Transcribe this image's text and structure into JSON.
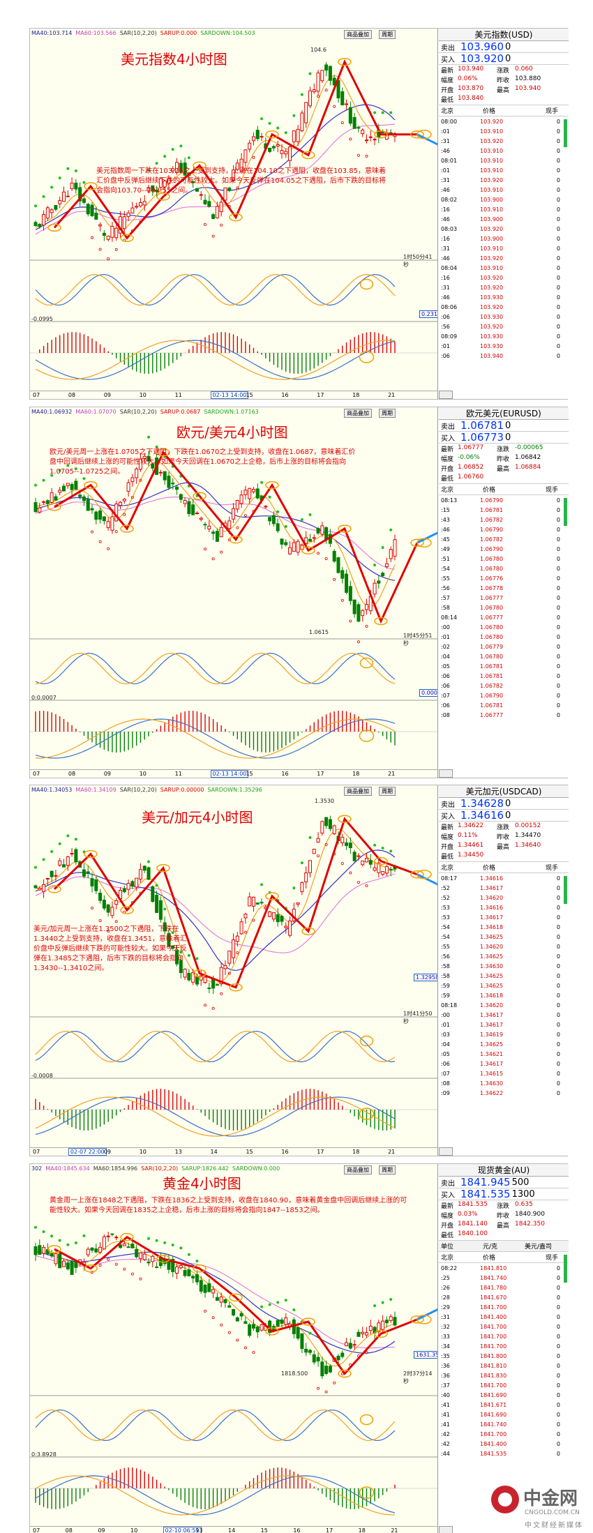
{
  "panels": [
    {
      "id": "usd",
      "indicators": [
        "MA40:103.714",
        "MA60:103.566",
        "SAR(10,2,20)",
        "SARUP:0.000",
        "SARDOWN:104.503"
      ],
      "toolbar": [
        "商品叠加",
        "周期"
      ],
      "title": "美元指数4小时图",
      "comment": "美元指数周一下跌在103.75之上受到支持，上涨在104.10之下遇阻，收盘在103.85，意味着汇价盘中反弹后继续下跌的可能性较大。如果今天反弹在104.05之下遇阻，后市下跌的目标将会指向103.70--103.55之间。",
      "countdown": "1时50分41秒",
      "peak_label": "104.6",
      "trough_label": "",
      "macd_label": "-0.0995",
      "macd_value": "0.231",
      "value_box": "",
      "xaxis": [
        "07",
        "08",
        "09",
        "10",
        "11",
        "02-13 14:00",
        "15",
        "16",
        "17",
        "18",
        "21"
      ],
      "quote": {
        "name": "美元指数(USD)",
        "sell_label": "卖出",
        "sell": "103.960",
        "sell_vol": "0",
        "buy_label": "买入",
        "buy": "103.920",
        "buy_vol": "0",
        "stats": [
          [
            "最新",
            "103.940",
            "涨跌",
            "0.060"
          ],
          [
            "幅度",
            "0.06%",
            "昨收",
            "103.880"
          ],
          [
            "开盘",
            "103.870",
            "最高",
            "103.940"
          ],
          [
            "最低",
            "103.840",
            "",
            ""
          ]
        ],
        "header": [
          "北京",
          "价格",
          "现手"
        ],
        "unit_row": [],
        "ticks": [
          [
            "08:00",
            "103.920",
            "0"
          ],
          [
            ":01",
            "103.910",
            "0"
          ],
          [
            ":31",
            "103.920",
            "0"
          ],
          [
            ":46",
            "103.910",
            "0"
          ],
          [
            "08:01",
            "103.910",
            "0"
          ],
          [
            ":01",
            "103.910",
            "0"
          ],
          [
            ":31",
            "103.920",
            "0"
          ],
          [
            ":46",
            "103.910",
            "0"
          ],
          [
            "08:02",
            "103.900",
            "0"
          ],
          [
            ":16",
            "103.910",
            "0"
          ],
          [
            ":46",
            "103.900",
            "0"
          ],
          [
            "08:03",
            "103.920",
            "0"
          ],
          [
            ":16",
            "103.900",
            "0"
          ],
          [
            ":31",
            "103.910",
            "0"
          ],
          [
            ":46",
            "103.920",
            "0"
          ],
          [
            "08:04",
            "103.910",
            "0"
          ],
          [
            ":16",
            "103.920",
            "0"
          ],
          [
            ":31",
            "103.920",
            "0"
          ],
          [
            ":46",
            "103.930",
            "0"
          ],
          [
            "08:06",
            "103.920",
            "0"
          ],
          [
            ":06",
            "103.930",
            "0"
          ],
          [
            ":56",
            "103.920",
            "0"
          ],
          [
            "08:09",
            "103.930",
            "0"
          ],
          [
            ":01",
            "103.930",
            "0"
          ],
          [
            ":06",
            "103.940",
            "0"
          ]
        ]
      }
    },
    {
      "id": "eur",
      "indicators": [
        "MA40:1.06932",
        "MA60:1.07070",
        "SAR(10,2,20)",
        "SARUP:0.0687",
        "SARDOWN:1.07163"
      ],
      "toolbar": [
        "商品叠加",
        "周期"
      ],
      "title": "欧元/美元4小时图",
      "comment": "欧元/美元周一上涨在1.0705之下遇阻，下跌在1.0670之上受到支持，收盘在1.0687，意味着汇价盘中回调后继续上涨的可能性较大。如果今天回调在1.0670之上企稳，后市上涨的目标将会指向1.0705--1.0725之间。",
      "countdown": "1时45分51秒",
      "peak_label": "",
      "trough_label": "1.0615",
      "macd_label": "0:0.0007",
      "macd_value": "0.00041",
      "value_box": "",
      "xaxis": [
        "07",
        "08",
        "09",
        "10",
        "11",
        "02-13 14:00",
        "15",
        "16",
        "17",
        "18",
        "21"
      ],
      "quote": {
        "name": "欧元美元(EURUSD)",
        "sell_label": "卖出",
        "sell": "1.06781",
        "sell_vol": "0",
        "buy_label": "买入",
        "buy": "1.06773",
        "buy_vol": "0",
        "stats": [
          [
            "最新",
            "1.06777",
            "涨跌",
            "-0.00065"
          ],
          [
            "幅度",
            "-0.06%",
            "昨收",
            "1.06842"
          ],
          [
            "开盘",
            "1.06852",
            "最高",
            "1.06884"
          ],
          [
            "最低",
            "1.06760",
            "",
            ""
          ]
        ],
        "header": [
          "北京",
          "价格",
          "现手"
        ],
        "unit_row": [],
        "ticks": [
          [
            "08:13",
            "1.06790",
            "0"
          ],
          [
            ":15",
            "1.06781",
            "0"
          ],
          [
            ":43",
            "1.06782",
            "0"
          ],
          [
            ":46",
            "1.06790",
            "0"
          ],
          [
            ":45",
            "1.06782",
            "0"
          ],
          [
            ":49",
            "1.06790",
            "0"
          ],
          [
            ":51",
            "1.06780",
            "0"
          ],
          [
            ":54",
            "1.06780",
            "0"
          ],
          [
            ":55",
            "1.06776",
            "0"
          ],
          [
            ":56",
            "1.06778",
            "0"
          ],
          [
            ":57",
            "1.06777",
            "0"
          ],
          [
            ":58",
            "1.06780",
            "0"
          ],
          [
            "08:14",
            "1.06777",
            "0"
          ],
          [
            ":00",
            "1.06780",
            "0"
          ],
          [
            ":01",
            "1.06780",
            "0"
          ],
          [
            ":02",
            "1.06779",
            "0"
          ],
          [
            ":04",
            "1.06780",
            "0"
          ],
          [
            ":05",
            "1.06781",
            "0"
          ],
          [
            ":06",
            "1.06781",
            "0"
          ],
          [
            ":06",
            "1.06782",
            "0"
          ],
          [
            ":07",
            "1.06790",
            "0"
          ],
          [
            ":06",
            "1.06781",
            "0"
          ],
          [
            ":08",
            "1.06777",
            "0"
          ]
        ]
      }
    },
    {
      "id": "cad",
      "indicators": [
        "MA40:1.34053",
        "MA60:1.34109",
        "SAR(10,2,20)",
        "SARUP:0.00000",
        "SARDOWN:1.35296"
      ],
      "toolbar": [
        "商品叠加",
        "周期"
      ],
      "title": "美元/加元4小时图",
      "comment": "美元/加元周一上涨在1.3500之下遇阻，下跌在1.3440之上受到支持，收盘在1.3451，意味着汇价盘中反弹后继续下跌的可能性较大。如果今天反弹在1.3485之下遇阻，后市下跌的目标将会指向1.3430--1.3410之间。",
      "countdown": "1时41分50秒",
      "peak_label": "1.3530",
      "trough_label": "",
      "macd_label": "-0.0008",
      "macd_value": "",
      "value_box": "1.32958",
      "xaxis": [
        "07",
        "02-07 22:00",
        "09",
        "10",
        "13",
        "14",
        "15",
        "16",
        "17",
        "18",
        "21"
      ],
      "quote": {
        "name": "美元加元(USDCAD)",
        "sell_label": "卖出",
        "sell": "1.34628",
        "sell_vol": "0",
        "buy_label": "买入",
        "buy": "1.34616",
        "buy_vol": "0",
        "stats": [
          [
            "最新",
            "1.34622",
            "涨跌",
            "0.00152"
          ],
          [
            "幅度",
            "0.11%",
            "昨收",
            "1.34470"
          ],
          [
            "开盘",
            "1.34461",
            "最高",
            "1.34640"
          ],
          [
            "最低",
            "1.34450",
            "",
            ""
          ]
        ],
        "header": [
          "北京",
          "价格",
          "现手"
        ],
        "unit_row": [],
        "ticks": [
          [
            "08:17",
            "1.34616",
            "0"
          ],
          [
            ":52",
            "1.34617",
            "0"
          ],
          [
            ":52",
            "1.34620",
            "0"
          ],
          [
            ":53",
            "1.34616",
            "0"
          ],
          [
            ":53",
            "1.34617",
            "0"
          ],
          [
            ":54",
            "1.34618",
            "0"
          ],
          [
            ":54",
            "1.34625",
            "0"
          ],
          [
            ":55",
            "1.34620",
            "0"
          ],
          [
            ":56",
            "1.34625",
            "0"
          ],
          [
            ":58",
            "1.34630",
            "0"
          ],
          [
            ":58",
            "1.34625",
            "0"
          ],
          [
            ":59",
            "1.34625",
            "0"
          ],
          [
            ":59",
            "1.34618",
            "0"
          ],
          [
            "08:18",
            "1.34620",
            "0"
          ],
          [
            ":00",
            "1.34617",
            "0"
          ],
          [
            ":01",
            "1.34617",
            "0"
          ],
          [
            ":03",
            "1.34619",
            "0"
          ],
          [
            ":04",
            "1.34625",
            "0"
          ],
          [
            ":05",
            "1.34621",
            "0"
          ],
          [
            ":06",
            "1.34617",
            "0"
          ],
          [
            ":07",
            "1.34615",
            "0"
          ],
          [
            ":08",
            "1.34630",
            "0"
          ],
          [
            ":09",
            "1.34622",
            "0"
          ]
        ]
      }
    },
    {
      "id": "gold",
      "indicators": [
        "302",
        "MA40:1845.634",
        "MA60:1854.996",
        "SAR(10,2,20)",
        "SARUP:1826.442",
        "SARDOWN:0.000"
      ],
      "toolbar": [
        "商品叠加",
        "周期"
      ],
      "title": "黄金4小时图",
      "comment": "黄金周一上涨在1848之下遇阻，下跌在1836之上受到支持，收盘在1840.90，意味着黄金盘中回调后继续上涨的可能性较大。如果今天回调在1835之上企稳，后市上涨的目标将会指向1847--1853之间。",
      "countdown": "2时37分14秒",
      "peak_label": "",
      "trough_label": "1818.500",
      "macd_label": "0:3.8928",
      "macd_value": "",
      "value_box": "1631.351",
      "xaxis": [
        "07",
        "08",
        "09",
        "10",
        "02-10 06:59",
        "13",
        "14",
        "15",
        "16",
        "17",
        "18",
        "21"
      ],
      "quote": {
        "name": "现货黄金(AU)",
        "sell_label": "卖出",
        "sell": "1841.945",
        "sell_vol": "500",
        "buy_label": "买入",
        "buy": "1841.535",
        "buy_vol": "1300",
        "stats": [
          [
            "最新",
            "1841.535",
            "涨跌",
            "0.635"
          ],
          [
            "幅度",
            "0.03%",
            "昨收",
            "1840.900"
          ],
          [
            "开盘",
            "1841.140",
            "最高",
            "1842.350"
          ],
          [
            "最低",
            "1840.100",
            "",
            ""
          ]
        ],
        "header": [
          "北京",
          "价格",
          "现手"
        ],
        "unit_row": [
          "单位",
          "元/克",
          "美元/盎司"
        ],
        "ticks": [
          [
            "08:22",
            "1841.810",
            "0"
          ],
          [
            ":25",
            "1841.740",
            "0"
          ],
          [
            ":26",
            "1841.780",
            "0"
          ],
          [
            ":28",
            "1841.670",
            "0"
          ],
          [
            ":29",
            "1841.700",
            "0"
          ],
          [
            ":31",
            "1841.400",
            "0"
          ],
          [
            ":32",
            "1841.700",
            "0"
          ],
          [
            ":33",
            "1841.700",
            "0"
          ],
          [
            ":34",
            "1841.700",
            "0"
          ],
          [
            ":35",
            "1841.800",
            "0"
          ],
          [
            ":36",
            "1841.810",
            "0"
          ],
          [
            ":36",
            "1841.830",
            "0"
          ],
          [
            ":37",
            "1841.700",
            "0"
          ],
          [
            ":40",
            "1841.690",
            "0"
          ],
          [
            ":41",
            "1841.671",
            "0"
          ],
          [
            ":41",
            "1841.690",
            "0"
          ],
          [
            ":41",
            "1841.740",
            "0"
          ],
          [
            ":42",
            "1841.700",
            "0"
          ],
          [
            ":42",
            "1841.400",
            "0"
          ],
          [
            ":44",
            "1841.535",
            "0"
          ]
        ]
      }
    }
  ],
  "logo": {
    "cn": "中金网",
    "en": "CNGOLD.COM.CN",
    "tag": "中文财经新媒体"
  },
  "colors": {
    "title_red": "#e00000",
    "candle_up": "#e00000",
    "candle_down": "#008000",
    "ma_blue": "#3030d0",
    "ma_pink": "#e080e0",
    "ma_orange": "#f0a020",
    "sar_red": "#e00000",
    "sar_green": "#20c020",
    "arrow_blue": "#1e90ff",
    "circle_orange": "#f0a000"
  },
  "chart_data": [
    {
      "type": "candlestick",
      "title": "美元指数4小时图",
      "x": [
        "07",
        "08",
        "09",
        "10",
        "11",
        "13",
        "15",
        "16",
        "17",
        "18",
        "21"
      ],
      "series": [
        {
          "values": [
            103.0,
            103.4,
            102.9,
            103.3,
            103.6,
            103.1,
            103.9,
            103.7,
            104.6,
            103.9,
            103.9
          ]
        }
      ],
      "ylim": [
        102.7,
        104.8
      ]
    },
    {
      "type": "candlestick",
      "title": "欧元/美元4小时图",
      "x": [
        "07",
        "08",
        "09",
        "10",
        "11",
        "13",
        "15",
        "16",
        "17",
        "18",
        "21"
      ],
      "series": [
        {
          "values": [
            1.072,
            1.074,
            1.07,
            1.077,
            1.073,
            1.069,
            1.074,
            1.068,
            1.07,
            1.0615,
            1.0687
          ]
        }
      ],
      "ylim": [
        1.06,
        1.08
      ]
    },
    {
      "type": "candlestick",
      "title": "美元/加元4小时图",
      "x": [
        "07",
        "08",
        "09",
        "10",
        "13",
        "14",
        "15",
        "16",
        "17",
        "18",
        "21"
      ],
      "series": [
        {
          "values": [
            1.343,
            1.348,
            1.34,
            1.346,
            1.331,
            1.329,
            1.342,
            1.337,
            1.353,
            1.347,
            1.3451
          ]
        }
      ],
      "ylim": [
        1.325,
        1.356
      ]
    },
    {
      "type": "candlestick",
      "title": "黄金4小时图",
      "x": [
        "07",
        "08",
        "09",
        "10",
        "13",
        "14",
        "15",
        "16",
        "17",
        "18",
        "21"
      ],
      "series": [
        {
          "values": [
            1870.0,
            1862.0,
            1875.0,
            1866.0,
            1862.0,
            1850.0,
            1836.0,
            1840.0,
            1818.5,
            1835.0,
            1840.9
          ]
        }
      ],
      "ylim": [
        1810,
        1900
      ]
    }
  ]
}
